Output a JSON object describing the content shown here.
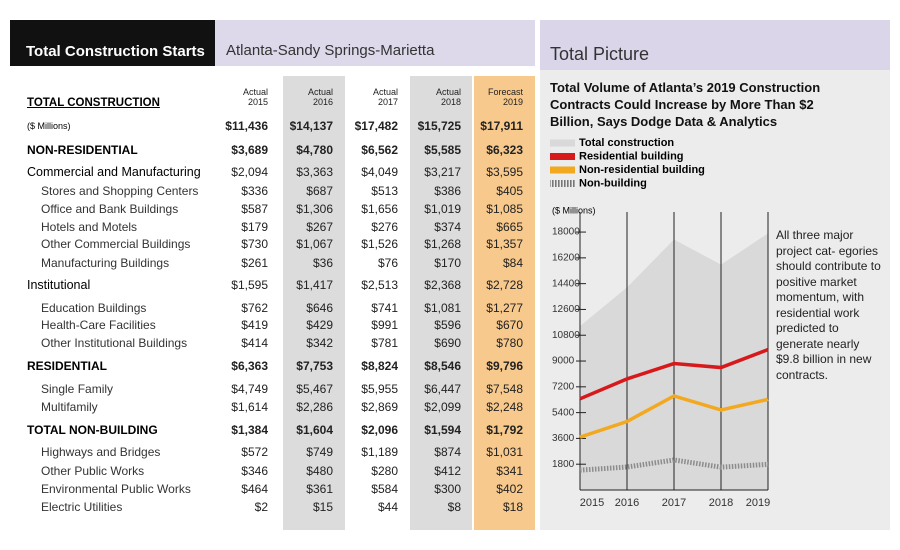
{
  "header": {
    "title": "Total Construction Starts",
    "region": "Atlanta-Sandy Springs-Marietta"
  },
  "table": {
    "title": "TOTAL CONSTRUCTION",
    "columns": [
      {
        "status": "Actual",
        "year": "2015"
      },
      {
        "status": "Actual",
        "year": "2016"
      },
      {
        "status": "Actual",
        "year": "2017"
      },
      {
        "status": "Actual",
        "year": "2018"
      },
      {
        "status": "Forecast",
        "year": "2019"
      }
    ],
    "rows": [
      {
        "label": "($ Millions)",
        "cells": [
          "$11,436",
          "$14,137",
          "$17,482",
          "$15,725",
          "$17,911"
        ]
      },
      {
        "label": "NON-RESIDENTIAL",
        "cells": [
          "$3,689",
          "$4,780",
          "$6,562",
          "$5,585",
          "$6,323"
        ]
      },
      {
        "label": "Commercial and Manufacturing",
        "cells": [
          "$2,094",
          "$3,363",
          "$4,049",
          "$3,217",
          "$3,595"
        ]
      },
      {
        "label": "Stores and Shopping Centers",
        "cells": [
          "$336",
          "$687",
          "$513",
          "$386",
          "$405"
        ]
      },
      {
        "label": "Office and Bank Buildings",
        "cells": [
          "$587",
          "$1,306",
          "$1,656",
          "$1,019",
          "$1,085"
        ]
      },
      {
        "label": "Hotels and Motels",
        "cells": [
          "$179",
          "$267",
          "$276",
          "$374",
          "$665"
        ]
      },
      {
        "label": "Other Commercial Buildings",
        "cells": [
          "$730",
          "$1,067",
          "$1,526",
          "$1,268",
          "$1,357"
        ]
      },
      {
        "label": "Manufacturing Buildings",
        "cells": [
          "$261",
          "$36",
          "$76",
          "$170",
          "$84"
        ]
      },
      {
        "label": "Institutional",
        "cells": [
          "$1,595",
          "$1,417",
          "$2,513",
          "$2,368",
          "$2,728"
        ]
      },
      {
        "label": "Education Buildings",
        "cells": [
          "$762",
          "$646",
          "$741",
          "$1,081",
          "$1,277"
        ]
      },
      {
        "label": "Health-Care Facilities",
        "cells": [
          "$419",
          "$429",
          "$991",
          "$596",
          "$670"
        ]
      },
      {
        "label": "Other Institutional Buildings",
        "cells": [
          "$414",
          "$342",
          "$781",
          "$690",
          "$780"
        ]
      },
      {
        "label": "RESIDENTIAL",
        "cells": [
          "$6,363",
          "$7,753",
          "$8,824",
          "$8,546",
          "$9,796"
        ]
      },
      {
        "label": "Single Family",
        "cells": [
          "$4,749",
          "$5,467",
          "$5,955",
          "$6,447",
          "$7,548"
        ]
      },
      {
        "label": "Multifamily",
        "cells": [
          "$1,614",
          "$2,286",
          "$2,869",
          "$2,099",
          "$2,248"
        ]
      },
      {
        "label": "TOTAL NON-BUILDING",
        "cells": [
          "$1,384",
          "$1,604",
          "$2,096",
          "$1,594",
          "$1,792"
        ]
      },
      {
        "label": "Highways and Bridges",
        "cells": [
          "$572",
          "$749",
          "$1,189",
          "$874",
          "$1,031"
        ]
      },
      {
        "label": "Other Public Works",
        "cells": [
          "$346",
          "$480",
          "$280",
          "$412",
          "$341"
        ]
      },
      {
        "label": "Environmental Public Works",
        "cells": [
          "$464",
          "$361",
          "$584",
          "$300",
          "$402"
        ]
      },
      {
        "label": "Electric Utilities",
        "cells": [
          "$2",
          "$15",
          "$44",
          "$8",
          "$18"
        ]
      }
    ]
  },
  "chart_data": {
    "type": "line",
    "panel_title": "Total Picture",
    "title": "Total Volume of Atlanta’s 2019 Construction Contracts Could Increase by More Than $2 Billion, Says Dodge Data & Analytics",
    "y_label": "($ Millions)",
    "annotation": "All three major project cat- egories should contribute to positive market momentum, with residential work predicted to generate nearly $9.8 billion in new contracts.",
    "categories": [
      "2015",
      "2016",
      "2017",
      "2018",
      "2019"
    ],
    "series": [
      {
        "name": "Total construction",
        "color": "#d9d9d9",
        "style": "area",
        "values": [
          11436,
          14137,
          17482,
          15725,
          17911
        ]
      },
      {
        "name": "Residential building",
        "color": "#d7191c",
        "style": "line",
        "values": [
          6363,
          7753,
          8824,
          8546,
          9796
        ]
      },
      {
        "name": "Non-residential building",
        "color": "#f2a91f",
        "style": "line",
        "values": [
          3689,
          4780,
          6562,
          5585,
          6323
        ]
      },
      {
        "name": "Non-building",
        "color": "#8c8c8c",
        "style": "hatched",
        "values": [
          1384,
          1604,
          2096,
          1594,
          1792
        ]
      }
    ],
    "ylim": [
      0,
      19400
    ],
    "yticks": [
      1800,
      3600,
      5400,
      7200,
      9000,
      10800,
      12600,
      14400,
      16200,
      18000
    ],
    "grid": true
  }
}
